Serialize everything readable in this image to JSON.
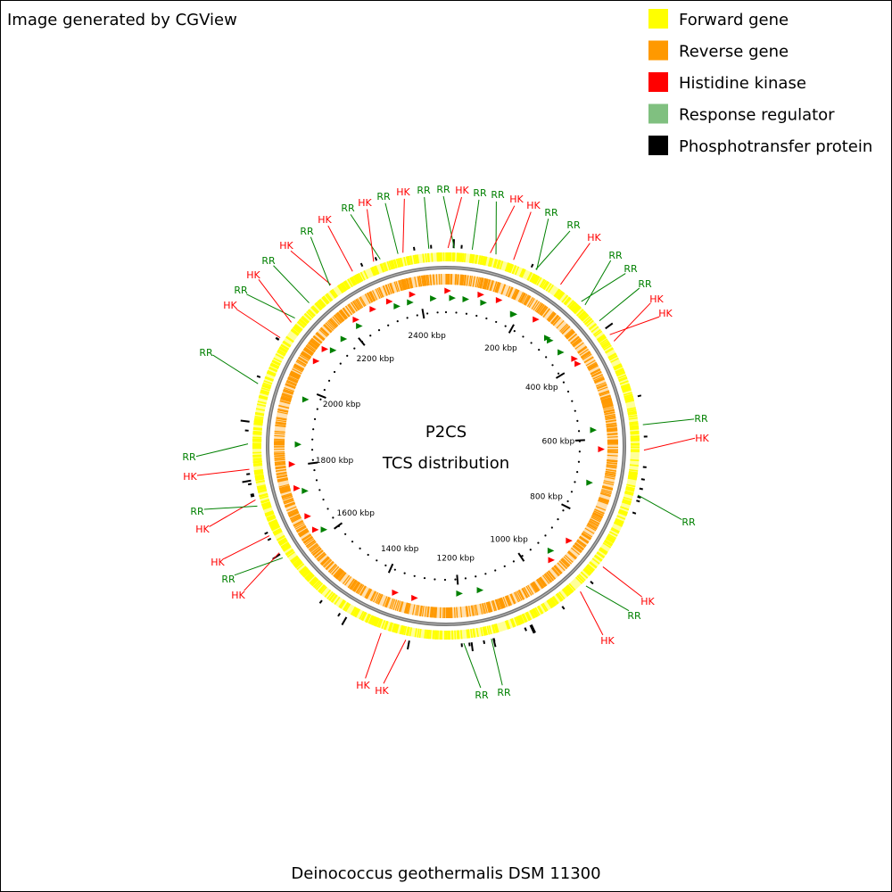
{
  "header": {
    "text": "Image generated by CGView"
  },
  "legend": [
    {
      "label": "Forward gene",
      "color": "#ffff00"
    },
    {
      "label": "Reverse gene",
      "color": "#ff9900"
    },
    {
      "label": "Histidine kinase",
      "color": "#ff0000"
    },
    {
      "label": "Response regulator",
      "color": "#80c080"
    },
    {
      "label": "Phosphotransfer protein",
      "color": "#000000"
    }
  ],
  "center": {
    "title": "P2CS",
    "subtitle": "TCS distribution"
  },
  "scale_labels": [
    "200 kbp",
    "400 kbp",
    "600 kbp",
    "800 kbp",
    "1000 kbp",
    "1200 kbp",
    "1400 kbp",
    "1600 kbp",
    "1800 kbp",
    "2000 kbp",
    "2200 kbp",
    "2400 kbp"
  ],
  "feature_labels": [
    {
      "text": "HK",
      "color": "#ff0000"
    },
    {
      "text": "RR",
      "color": "#008000"
    },
    {
      "text": "RR",
      "color": "#008000"
    },
    {
      "text": "HK",
      "color": "#ff0000"
    },
    {
      "text": "RR",
      "color": "#008000"
    },
    {
      "text": "RR",
      "color": "#008000"
    },
    {
      "text": "HK",
      "color": "#ff0000"
    },
    {
      "text": "HK",
      "color": "#ff0000"
    },
    {
      "text": "RR",
      "color": "#008000"
    },
    {
      "text": "RR",
      "color": "#008000"
    },
    {
      "text": "HK",
      "color": "#ff0000"
    },
    {
      "text": "RR",
      "color": "#008000"
    },
    {
      "text": "RR",
      "color": "#008000"
    },
    {
      "text": "RR",
      "color": "#008000"
    },
    {
      "text": "HK",
      "color": "#ff0000"
    },
    {
      "text": "HK",
      "color": "#ff0000"
    },
    {
      "text": "RR",
      "color": "#008000"
    },
    {
      "text": "HK",
      "color": "#ff0000"
    },
    {
      "text": "RR",
      "color": "#008000"
    },
    {
      "text": "HK",
      "color": "#ff0000"
    },
    {
      "text": "RR",
      "color": "#008000"
    },
    {
      "text": "HK",
      "color": "#ff0000"
    },
    {
      "text": "RR",
      "color": "#008000"
    },
    {
      "text": "RR",
      "color": "#008000"
    },
    {
      "text": "HK",
      "color": "#ff0000"
    },
    {
      "text": "HK",
      "color": "#ff0000"
    },
    {
      "text": "HK",
      "color": "#ff0000"
    },
    {
      "text": "RR",
      "color": "#008000"
    },
    {
      "text": "HK",
      "color": "#ff0000"
    },
    {
      "text": "HK",
      "color": "#ff0000"
    },
    {
      "text": "RR",
      "color": "#008000"
    },
    {
      "text": "HK",
      "color": "#ff0000"
    },
    {
      "text": "RR",
      "color": "#008000"
    },
    {
      "text": "RR",
      "color": "#008000"
    },
    {
      "text": "HK",
      "color": "#ff0000"
    },
    {
      "text": "RR",
      "color": "#008000"
    },
    {
      "text": "HK",
      "color": "#ff0000"
    },
    {
      "text": "RR",
      "color": "#008000"
    },
    {
      "text": "HK",
      "color": "#ff0000"
    },
    {
      "text": "RR",
      "color": "#008000"
    },
    {
      "text": "HK",
      "color": "#ff0000"
    },
    {
      "text": "RR",
      "color": "#008000"
    },
    {
      "text": "HK",
      "color": "#ff0000"
    },
    {
      "text": "RR",
      "color": "#008000"
    }
  ],
  "footer": {
    "text": "Deinococcus geothermalis DSM 11300"
  }
}
